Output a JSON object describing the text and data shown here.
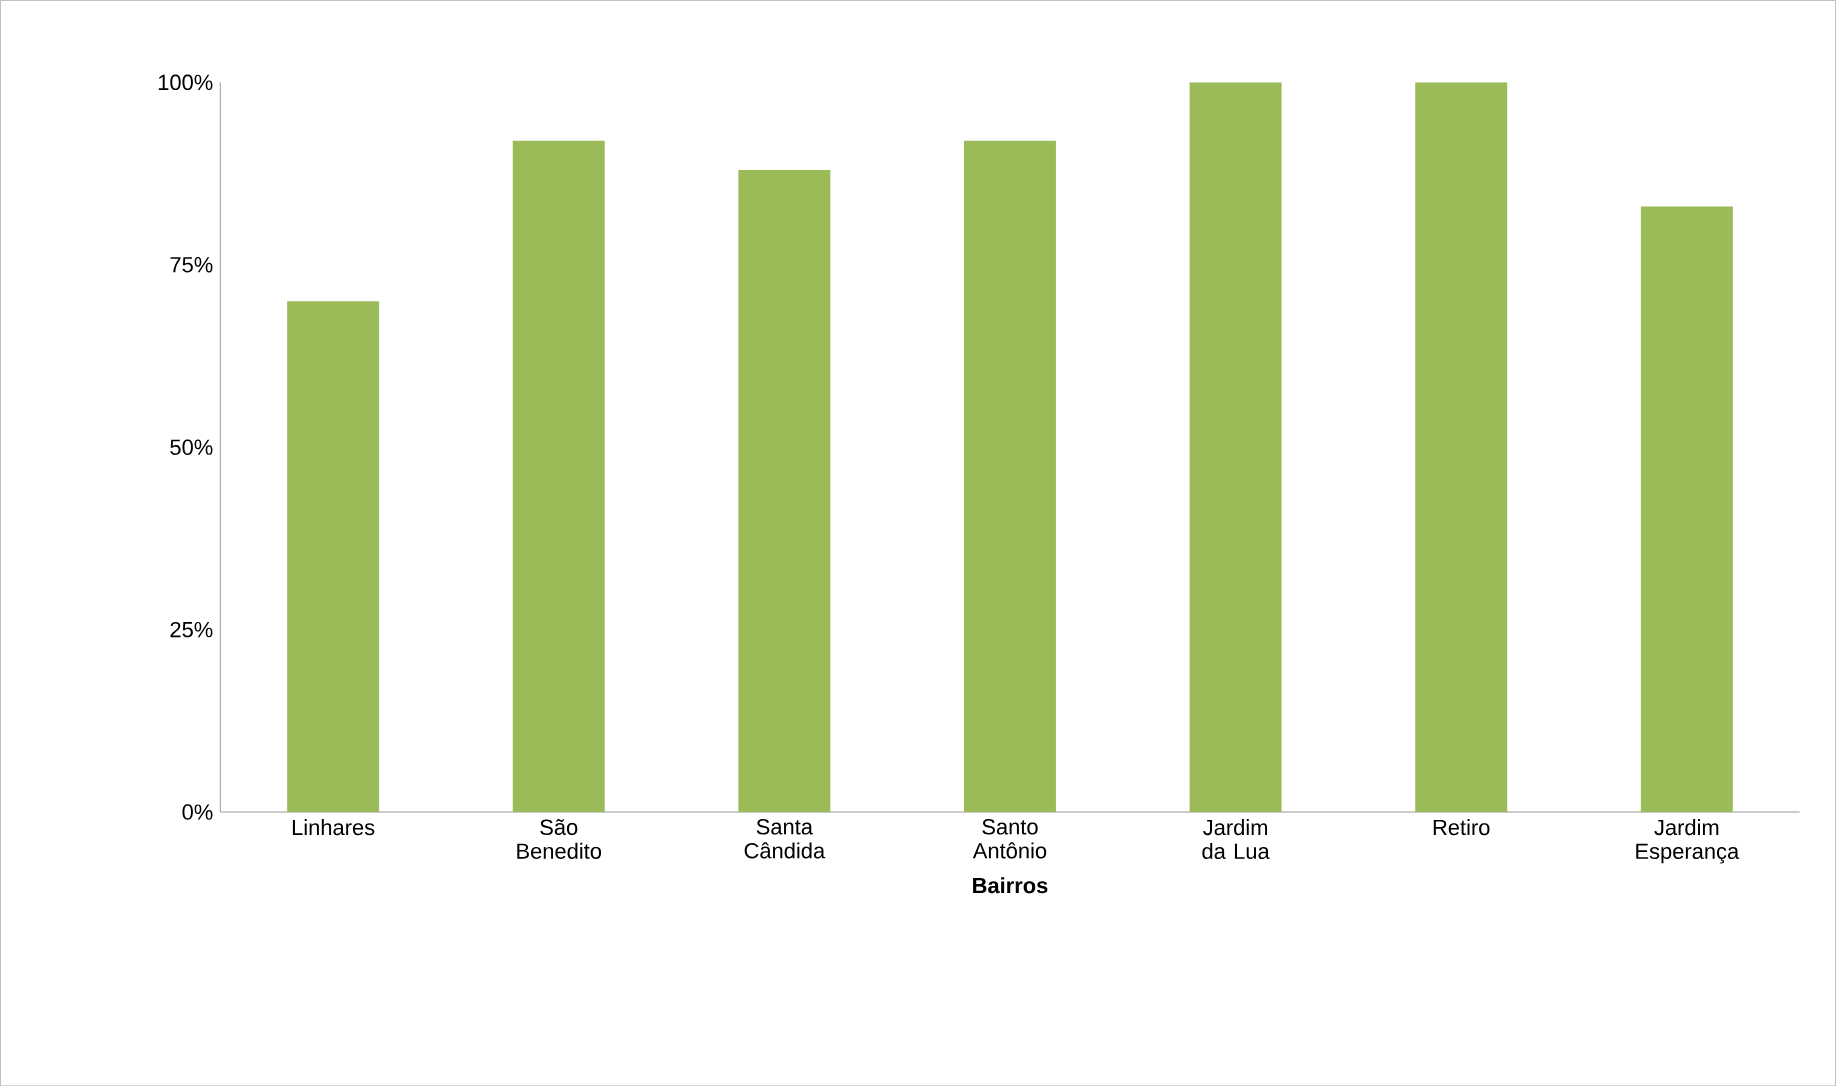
{
  "chart_data": {
    "type": "bar",
    "xlabel": "**Bairros**",
    "categories": [
      "Linhares",
      "São Benedito",
      "Santa Cândida",
      "Santo Antônio",
      "Jardim da Lua",
      "Retiro",
      "Jardim Esperança"
    ],
    "values": [
      70,
      92,
      88,
      92,
      100,
      100,
      83
    ],
    "color": "#9bbb59",
    "ylim": [
      0,
      100
    ],
    "yticks": [
      {
        "value": 0,
        "label": "0%"
      },
      {
        "value": 25,
        "label": "25%"
      },
      {
        "value": 50,
        "label": "50%"
      },
      {
        "value": 75,
        "label": "75%"
      },
      {
        "value": 100,
        "label": "100%"
      }
    ]
  }
}
